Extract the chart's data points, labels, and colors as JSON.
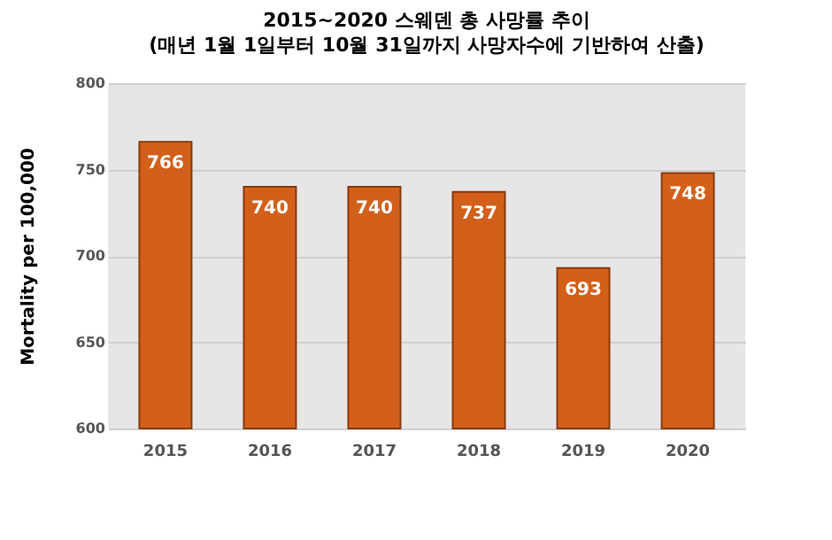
{
  "chart_data": {
    "type": "bar",
    "title": "2015~2020 스웨덴 총 사망률 추이",
    "subtitle": "(매년 1월 1일부터 10월 31일까지 사망자수에 기반하여 산출)",
    "ylabel": "Mortality per 100,000",
    "categories": [
      "2015",
      "2016",
      "2017",
      "2018",
      "2019",
      "2020"
    ],
    "values": [
      766,
      740,
      740,
      737,
      693,
      748
    ],
    "color": "#d2601a",
    "ylim": [
      600,
      800
    ],
    "yticks": [
      600,
      650,
      700,
      750,
      800
    ],
    "grid": "y",
    "data_labels": true
  }
}
